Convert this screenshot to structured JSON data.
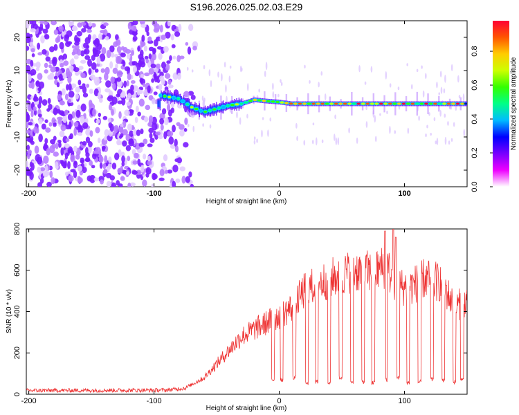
{
  "chart_data": [
    {
      "type": "heatmap",
      "title": "S196.2026.025.02.03.E29",
      "xlabel": "Height of straight line (km)",
      "ylabel": "Frequency (Hz)",
      "xlim": [
        -202,
        150
      ],
      "ylim": [
        -25,
        25
      ],
      "xticks": [
        {
          "value": -200,
          "label": "-200"
        },
        {
          "value": -100,
          "label": "-100"
        },
        {
          "value": 0,
          "label": "0"
        },
        {
          "value": 100,
          "label": "100"
        }
      ],
      "yticks": [
        {
          "value": -20,
          "label": "-20"
        },
        {
          "value": -10,
          "label": "-10"
        },
        {
          "value": 0,
          "label": "0"
        },
        {
          "value": 10,
          "label": "10"
        },
        {
          "value": 20,
          "label": "20"
        }
      ],
      "colorbar": {
        "label": "Normalized spectral amplitude",
        "range": [
          0,
          0.98
        ],
        "ticks": [
          {
            "value": 0.0,
            "label": "0.0"
          },
          {
            "value": 0.2,
            "label": "0.2"
          },
          {
            "value": 0.4,
            "label": "0.4"
          },
          {
            "value": 0.6,
            "label": "0.6"
          },
          {
            "value": 0.8,
            "label": "0.8"
          }
        ],
        "colors": [
          "#ffffff",
          "#ee00ff",
          "#7700ff",
          "#0000ff",
          "#00bbff",
          "#00ff88",
          "#33ff00",
          "#ccff00",
          "#ffcc00",
          "#ff5500",
          "#ff0033"
        ]
      },
      "noise_region_x": [
        -202,
        -70
      ],
      "signal_band": [
        {
          "x": -95,
          "f": 2.5
        },
        {
          "x": -80,
          "f": 1.5
        },
        {
          "x": -70,
          "f": -1.0
        },
        {
          "x": -60,
          "f": -2.5
        },
        {
          "x": -50,
          "f": -1.5
        },
        {
          "x": -40,
          "f": -0.5
        },
        {
          "x": -30,
          "f": 0.0
        },
        {
          "x": -20,
          "f": 1.2
        },
        {
          "x": -10,
          "f": 0.8
        },
        {
          "x": 0,
          "f": 0.5
        },
        {
          "x": 10,
          "f": 0.0
        },
        {
          "x": 150,
          "f": 0.0
        }
      ]
    },
    {
      "type": "line",
      "xlabel": "Height of straight line (km)",
      "ylabel": "SNR (10 * v/v)",
      "xlim": [
        -202,
        150
      ],
      "ylim": [
        0,
        800
      ],
      "xticks": [
        {
          "value": -200,
          "label": "-200"
        },
        {
          "value": -100,
          "label": "-100"
        },
        {
          "value": 0,
          "label": "0"
        },
        {
          "value": 100,
          "label": "100"
        }
      ],
      "yticks": [
        {
          "value": 0,
          "label": "0"
        },
        {
          "value": 200,
          "label": "200"
        },
        {
          "value": 400,
          "label": "400"
        },
        {
          "value": 600,
          "label": "600"
        },
        {
          "value": 800,
          "label": "800"
        }
      ],
      "color": "#ee3333",
      "envelope": [
        {
          "x": -202,
          "snr": 18
        },
        {
          "x": -90,
          "snr": 20
        },
        {
          "x": -75,
          "snr": 30
        },
        {
          "x": -60,
          "snr": 80
        },
        {
          "x": -45,
          "snr": 180
        },
        {
          "x": -30,
          "snr": 280
        },
        {
          "x": -15,
          "snr": 330
        },
        {
          "x": 0,
          "snr": 380
        },
        {
          "x": 10,
          "snr": 420
        },
        {
          "x": 20,
          "snr": 500
        },
        {
          "x": 40,
          "snr": 560
        },
        {
          "x": 60,
          "snr": 600
        },
        {
          "x": 75,
          "snr": 590
        },
        {
          "x": 85,
          "snr": 620
        },
        {
          "x": 95,
          "snr": 520
        },
        {
          "x": 105,
          "snr": 520
        },
        {
          "x": 115,
          "snr": 560
        },
        {
          "x": 130,
          "snr": 540
        },
        {
          "x": 140,
          "snr": 420
        },
        {
          "x": 150,
          "snr": 460
        }
      ],
      "peaks": [
        {
          "x": 84.5,
          "snr": 790
        },
        {
          "x": 91,
          "snr": 800
        },
        {
          "x": 93,
          "snr": 760
        }
      ],
      "dips": [
        {
          "x": -5,
          "snr": 60
        },
        {
          "x": 2,
          "snr": 60
        },
        {
          "x": 12,
          "snr": 70
        },
        {
          "x": 22,
          "snr": 45
        },
        {
          "x": 30,
          "snr": 50
        },
        {
          "x": 40,
          "snr": 45
        },
        {
          "x": 49,
          "snr": 70
        },
        {
          "x": 58,
          "snr": 45
        },
        {
          "x": 67,
          "snr": 50
        },
        {
          "x": 75,
          "snr": 45
        },
        {
          "x": 85,
          "snr": 60
        },
        {
          "x": 95,
          "snr": 70
        },
        {
          "x": 103,
          "snr": 45
        },
        {
          "x": 112,
          "snr": 50
        },
        {
          "x": 122,
          "snr": 60
        },
        {
          "x": 131,
          "snr": 55
        },
        {
          "x": 140,
          "snr": 50
        },
        {
          "x": 146,
          "snr": 60
        }
      ]
    }
  ]
}
